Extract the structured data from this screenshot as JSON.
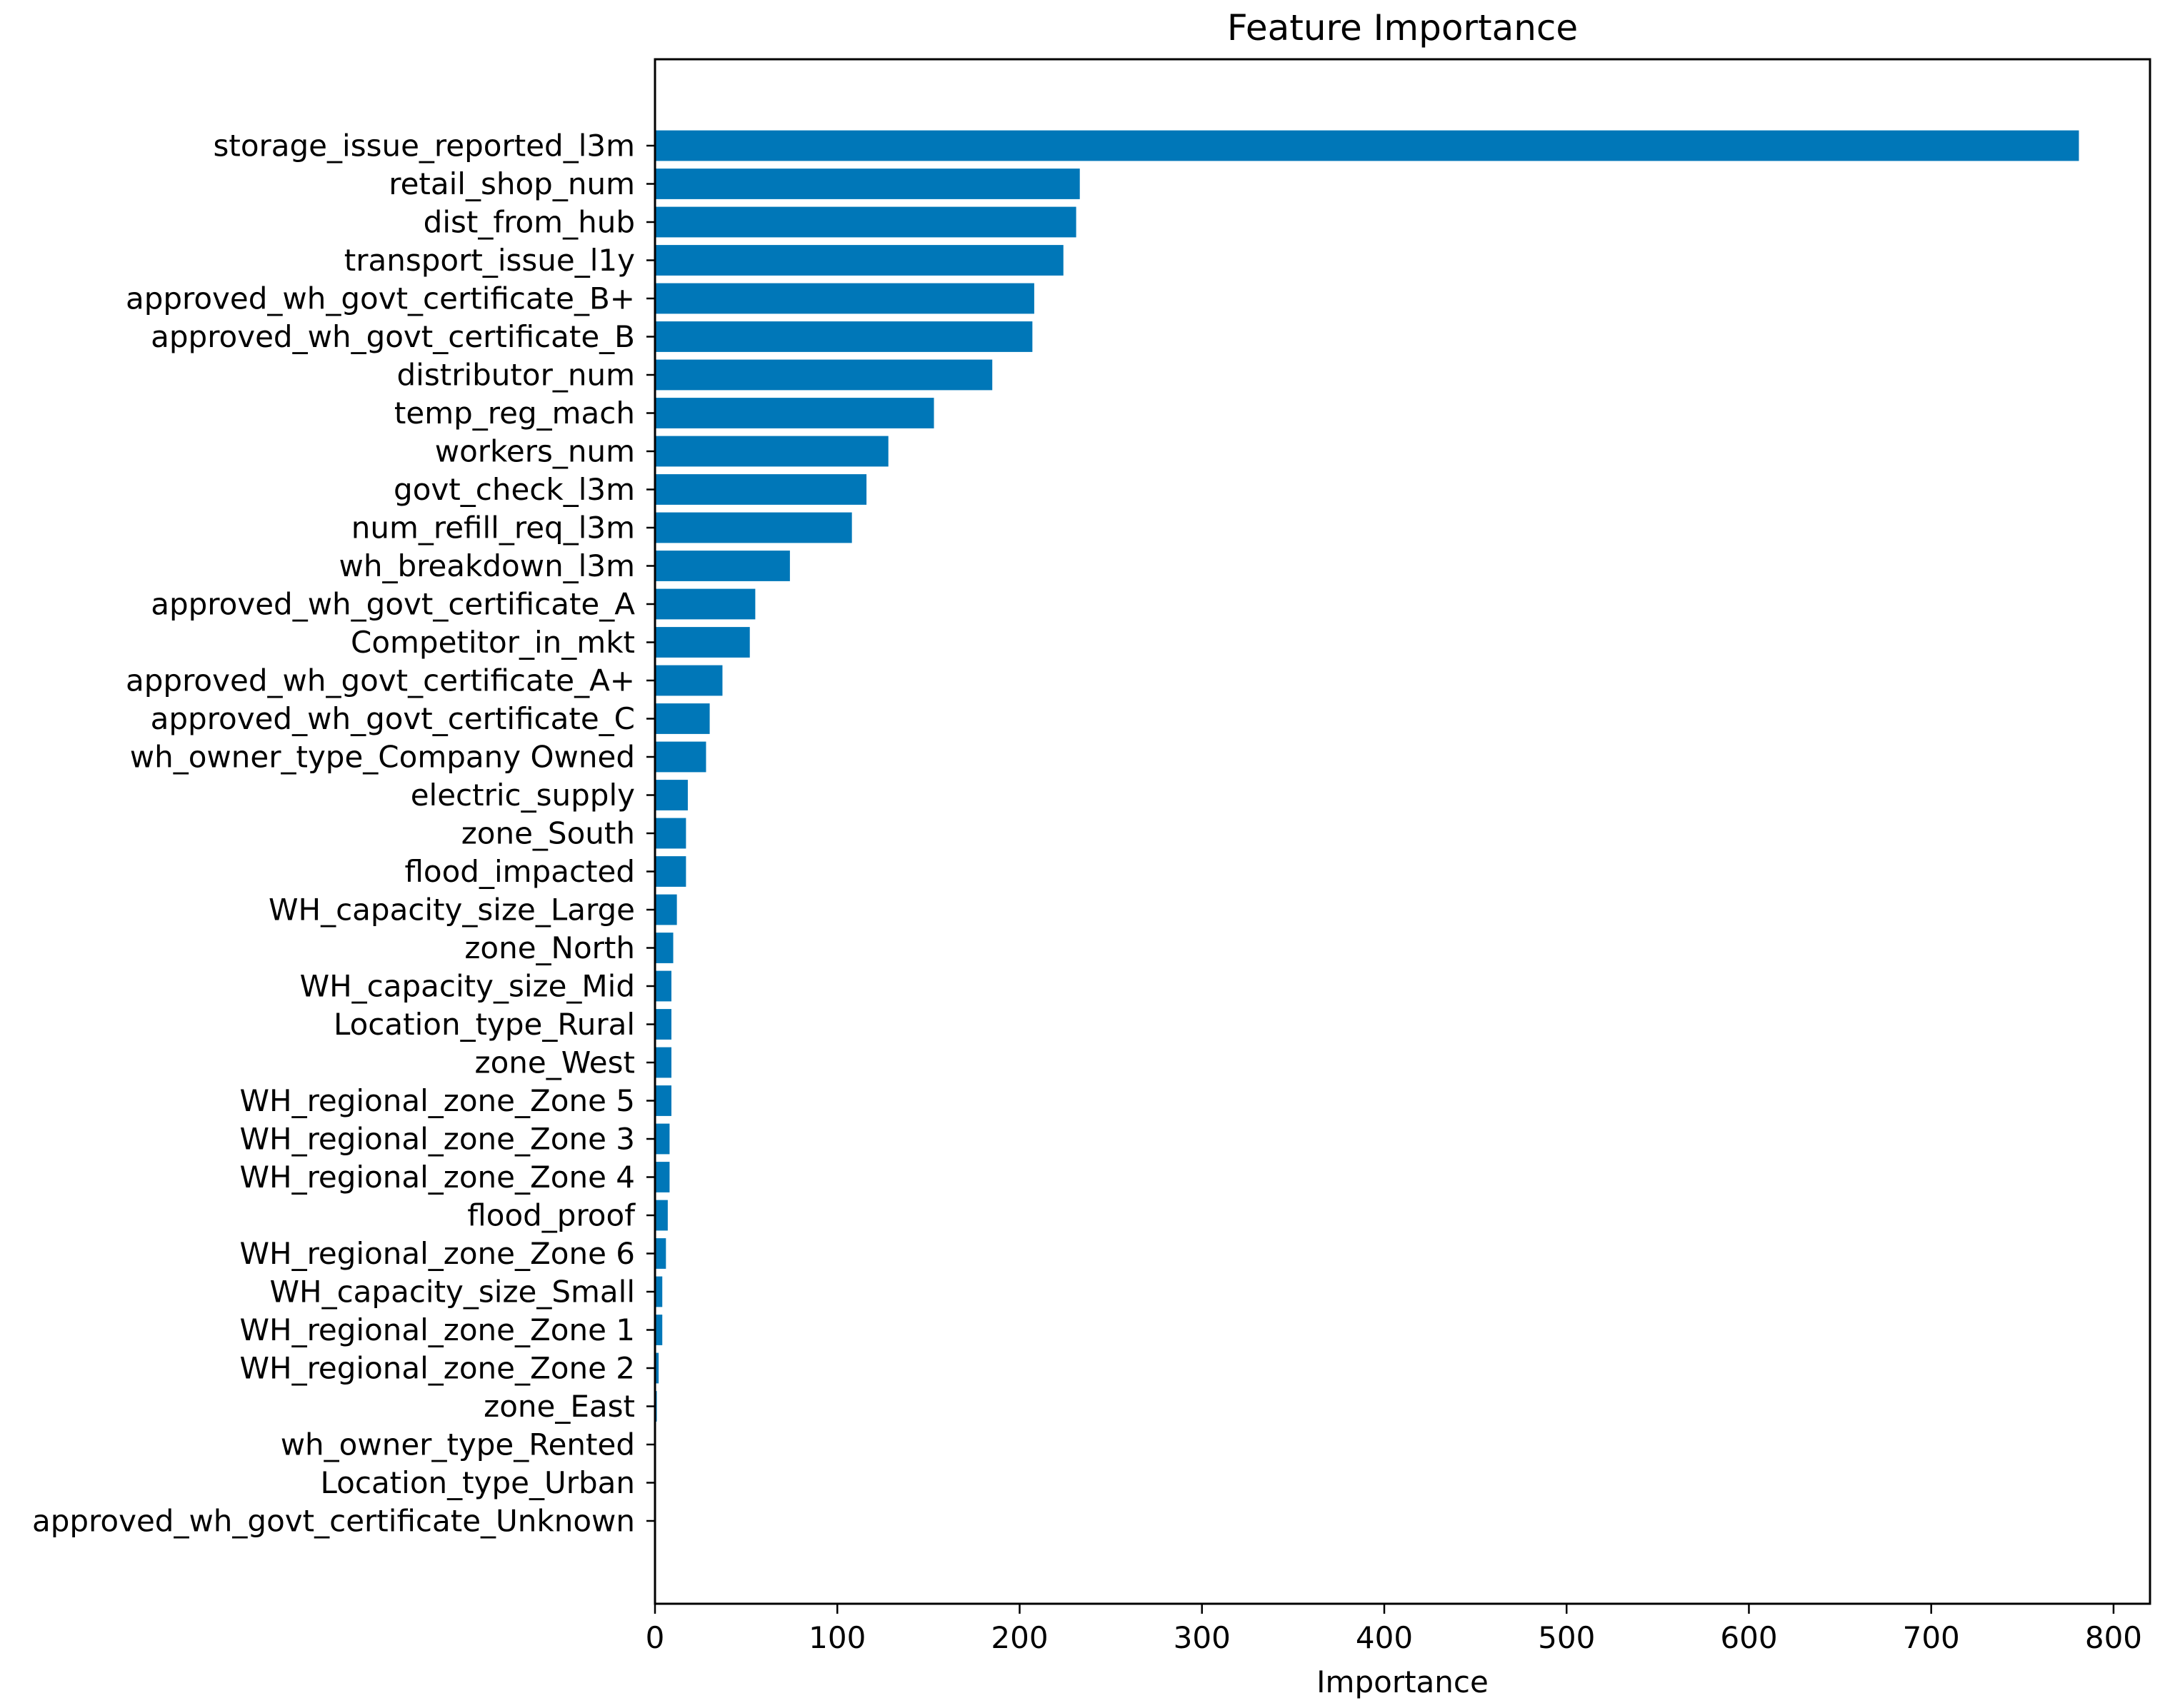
{
  "chart_data": {
    "type": "bar",
    "orientation": "horizontal",
    "title": "Feature Importance",
    "xlabel": "Importance",
    "ylabel": "",
    "xlim": [
      0,
      820
    ],
    "xticks": [
      0,
      100,
      200,
      300,
      400,
      500,
      600,
      700,
      800
    ],
    "xtick_labels": [
      "0",
      "100",
      "200",
      "300",
      "400",
      "500",
      "600",
      "700",
      "800"
    ],
    "grid": false,
    "bar_color": "#0077b8",
    "categories": [
      "storage_issue_reported_l3m",
      "retail_shop_num",
      "dist_from_hub",
      "transport_issue_l1y",
      "approved_wh_govt_certificate_B+",
      "approved_wh_govt_certificate_B",
      "distributor_num",
      "temp_reg_mach",
      "workers_num",
      "govt_check_l3m",
      "num_refill_req_l3m",
      "wh_breakdown_l3m",
      "approved_wh_govt_certificate_A",
      "Competitor_in_mkt",
      "approved_wh_govt_certificate_A+",
      "approved_wh_govt_certificate_C",
      "wh_owner_type_Company Owned",
      "electric_supply",
      "zone_South",
      "flood_impacted",
      "WH_capacity_size_Large",
      "zone_North",
      "WH_capacity_size_Mid",
      "Location_type_Rural",
      "zone_West",
      "WH_regional_zone_Zone 5",
      "WH_regional_zone_Zone 3",
      "WH_regional_zone_Zone 4",
      "flood_proof",
      "WH_regional_zone_Zone 6",
      "WH_capacity_size_Small",
      "WH_regional_zone_Zone 1",
      "WH_regional_zone_Zone 2",
      "zone_East",
      "wh_owner_type_Rented",
      "Location_type_Urban",
      "approved_wh_govt_certificate_Unknown"
    ],
    "values": [
      781,
      233,
      231,
      224,
      208,
      207,
      185,
      153,
      128,
      116,
      108,
      74,
      55,
      52,
      37,
      30,
      28,
      18,
      17,
      17,
      12,
      10,
      9,
      9,
      9,
      9,
      8,
      8,
      7,
      6,
      4,
      4,
      2,
      1,
      0,
      0,
      0
    ]
  }
}
